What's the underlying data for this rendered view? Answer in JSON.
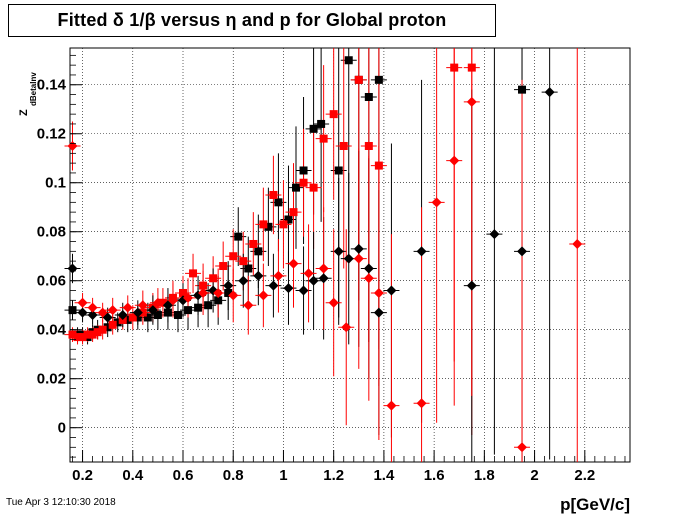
{
  "title": "Fitted δ 1/β versus η and p for Global proton",
  "footer_timestamp": "Tue Apr  3 12:10:30 2018",
  "chart_data": {
    "type": "scatter",
    "xlabel": "p[GeV/c]",
    "ylabel": "Z",
    "ylabel_sub": "dBetaInv",
    "xlim": [
      0.15,
      2.38
    ],
    "ylim": [
      -0.014,
      0.155
    ],
    "xticks": [
      0.2,
      0.4,
      0.6,
      0.8,
      1.0,
      1.2,
      1.4,
      1.6,
      1.8,
      2.0,
      2.2
    ],
    "xtick_labels": [
      "0.2",
      "0.4",
      "0.6",
      "0.8",
      "1",
      "1.2",
      "1.4",
      "1.6",
      "1.8",
      "2",
      "2.2"
    ],
    "yticks": [
      0.0,
      0.02,
      0.04,
      0.06,
      0.08,
      0.1,
      0.12,
      0.14
    ],
    "ytick_labels": [
      "0",
      "0.02",
      "0.04",
      "0.06",
      "0.08",
      "0.1",
      "0.12",
      "0.14"
    ],
    "grid": true,
    "colors": {
      "black": "#000000",
      "red": "#ff0000"
    },
    "series": [
      {
        "marker": "square",
        "color": "#000000",
        "points": [
          [
            0.16,
            0.048,
            0.004
          ],
          [
            0.18,
            0.038,
            0.003
          ],
          [
            0.2,
            0.038,
            0.003
          ],
          [
            0.22,
            0.037,
            0.003
          ],
          [
            0.24,
            0.039,
            0.003
          ],
          [
            0.26,
            0.04,
            0.004
          ],
          [
            0.3,
            0.041,
            0.004
          ],
          [
            0.34,
            0.043,
            0.004
          ],
          [
            0.38,
            0.044,
            0.005
          ],
          [
            0.42,
            0.045,
            0.005
          ],
          [
            0.46,
            0.045,
            0.006
          ],
          [
            0.5,
            0.046,
            0.006
          ],
          [
            0.54,
            0.047,
            0.007
          ],
          [
            0.58,
            0.046,
            0.007
          ],
          [
            0.62,
            0.048,
            0.008
          ],
          [
            0.66,
            0.049,
            0.008
          ],
          [
            0.7,
            0.05,
            0.009
          ],
          [
            0.74,
            0.052,
            0.01
          ],
          [
            0.78,
            0.055,
            0.011
          ],
          [
            0.82,
            0.078,
            0.012
          ],
          [
            0.86,
            0.065,
            0.013
          ],
          [
            0.9,
            0.072,
            0.015
          ],
          [
            0.94,
            0.082,
            0.016
          ],
          [
            0.98,
            0.092,
            0.02
          ],
          [
            1.02,
            0.085,
            0.022
          ],
          [
            1.05,
            0.098,
            0.025
          ],
          [
            1.08,
            0.105,
            0.03
          ],
          [
            1.12,
            0.122,
            0.035
          ],
          [
            1.15,
            0.124,
            0.04
          ],
          [
            1.22,
            0.105,
            0.06
          ],
          [
            1.26,
            0.15,
            0.08
          ],
          [
            1.3,
            0.142,
            0.09
          ],
          [
            1.34,
            0.135,
            0.1
          ],
          [
            1.38,
            0.142,
            0.11
          ],
          [
            1.95,
            0.138,
            0.2
          ]
        ]
      },
      {
        "marker": "square",
        "color": "#ff0000",
        "points": [
          [
            0.16,
            0.038,
            0.003
          ],
          [
            0.18,
            0.037,
            0.003
          ],
          [
            0.2,
            0.037,
            0.003
          ],
          [
            0.22,
            0.038,
            0.003
          ],
          [
            0.24,
            0.038,
            0.003
          ],
          [
            0.26,
            0.039,
            0.003
          ],
          [
            0.28,
            0.04,
            0.004
          ],
          [
            0.32,
            0.042,
            0.004
          ],
          [
            0.36,
            0.044,
            0.004
          ],
          [
            0.4,
            0.045,
            0.005
          ],
          [
            0.44,
            0.047,
            0.005
          ],
          [
            0.48,
            0.049,
            0.006
          ],
          [
            0.52,
            0.051,
            0.006
          ],
          [
            0.56,
            0.053,
            0.007
          ],
          [
            0.6,
            0.055,
            0.007
          ],
          [
            0.64,
            0.063,
            0.008
          ],
          [
            0.68,
            0.058,
            0.009
          ],
          [
            0.72,
            0.061,
            0.009
          ],
          [
            0.76,
            0.066,
            0.01
          ],
          [
            0.8,
            0.07,
            0.011
          ],
          [
            0.84,
            0.068,
            0.012
          ],
          [
            0.88,
            0.075,
            0.013
          ],
          [
            0.92,
            0.083,
            0.015
          ],
          [
            0.96,
            0.095,
            0.016
          ],
          [
            1.0,
            0.083,
            0.018
          ],
          [
            1.04,
            0.088,
            0.02
          ],
          [
            1.08,
            0.1,
            0.022
          ],
          [
            1.12,
            0.098,
            0.025
          ],
          [
            1.16,
            0.118,
            0.03
          ],
          [
            1.2,
            0.128,
            0.035
          ],
          [
            1.24,
            0.115,
            0.05
          ],
          [
            1.3,
            0.142,
            0.07
          ],
          [
            1.34,
            0.115,
            0.08
          ],
          [
            1.38,
            0.107,
            0.09
          ],
          [
            1.68,
            0.147,
            0.12
          ],
          [
            1.75,
            0.147,
            0.15
          ]
        ]
      },
      {
        "marker": "diamond",
        "color": "#000000",
        "points": [
          [
            0.16,
            0.065,
            0.006
          ],
          [
            0.2,
            0.047,
            0.004
          ],
          [
            0.24,
            0.046,
            0.004
          ],
          [
            0.3,
            0.045,
            0.004
          ],
          [
            0.36,
            0.046,
            0.005
          ],
          [
            0.42,
            0.047,
            0.005
          ],
          [
            0.48,
            0.048,
            0.006
          ],
          [
            0.54,
            0.05,
            0.007
          ],
          [
            0.6,
            0.052,
            0.007
          ],
          [
            0.66,
            0.054,
            0.008
          ],
          [
            0.72,
            0.056,
            0.009
          ],
          [
            0.78,
            0.058,
            0.01
          ],
          [
            0.84,
            0.06,
            0.011
          ],
          [
            0.9,
            0.062,
            0.012
          ],
          [
            0.96,
            0.058,
            0.013
          ],
          [
            1.02,
            0.057,
            0.015
          ],
          [
            1.08,
            0.056,
            0.018
          ],
          [
            1.12,
            0.06,
            0.02
          ],
          [
            1.16,
            0.061,
            0.025
          ],
          [
            1.22,
            0.072,
            0.03
          ],
          [
            1.26,
            0.069,
            0.035
          ],
          [
            1.3,
            0.073,
            0.04
          ],
          [
            1.34,
            0.065,
            0.045
          ],
          [
            1.38,
            0.047,
            0.05
          ],
          [
            1.43,
            0.056,
            0.06
          ],
          [
            1.55,
            0.072,
            0.07
          ],
          [
            1.75,
            0.058,
            0.08
          ],
          [
            1.84,
            0.079,
            0.09
          ],
          [
            1.95,
            0.072,
            0.1
          ],
          [
            2.06,
            0.137,
            0.15
          ]
        ]
      },
      {
        "marker": "diamond",
        "color": "#ff0000",
        "points": [
          [
            0.16,
            0.115,
            0.01
          ],
          [
            0.2,
            0.051,
            0.004
          ],
          [
            0.24,
            0.049,
            0.004
          ],
          [
            0.28,
            0.047,
            0.004
          ],
          [
            0.32,
            0.048,
            0.005
          ],
          [
            0.38,
            0.049,
            0.005
          ],
          [
            0.44,
            0.05,
            0.006
          ],
          [
            0.5,
            0.051,
            0.006
          ],
          [
            0.56,
            0.052,
            0.007
          ],
          [
            0.62,
            0.053,
            0.008
          ],
          [
            0.68,
            0.055,
            0.009
          ],
          [
            0.74,
            0.055,
            0.01
          ],
          [
            0.8,
            0.054,
            0.011
          ],
          [
            0.86,
            0.05,
            0.012
          ],
          [
            0.92,
            0.054,
            0.013
          ],
          [
            0.98,
            0.062,
            0.015
          ],
          [
            1.04,
            0.067,
            0.018
          ],
          [
            1.1,
            0.063,
            0.02
          ],
          [
            1.16,
            0.065,
            0.025
          ],
          [
            1.2,
            0.051,
            0.03
          ],
          [
            1.25,
            0.041,
            0.04
          ],
          [
            1.3,
            0.069,
            0.045
          ],
          [
            1.34,
            0.061,
            0.05
          ],
          [
            1.38,
            0.055,
            0.06
          ],
          [
            1.43,
            0.009,
            0.07
          ],
          [
            1.55,
            0.01,
            0.08
          ],
          [
            1.61,
            0.092,
            0.09
          ],
          [
            1.68,
            0.109,
            0.1
          ],
          [
            1.75,
            0.133,
            0.12
          ],
          [
            1.95,
            -0.008,
            0.15
          ],
          [
            2.17,
            0.075,
            0.15
          ]
        ]
      }
    ]
  }
}
